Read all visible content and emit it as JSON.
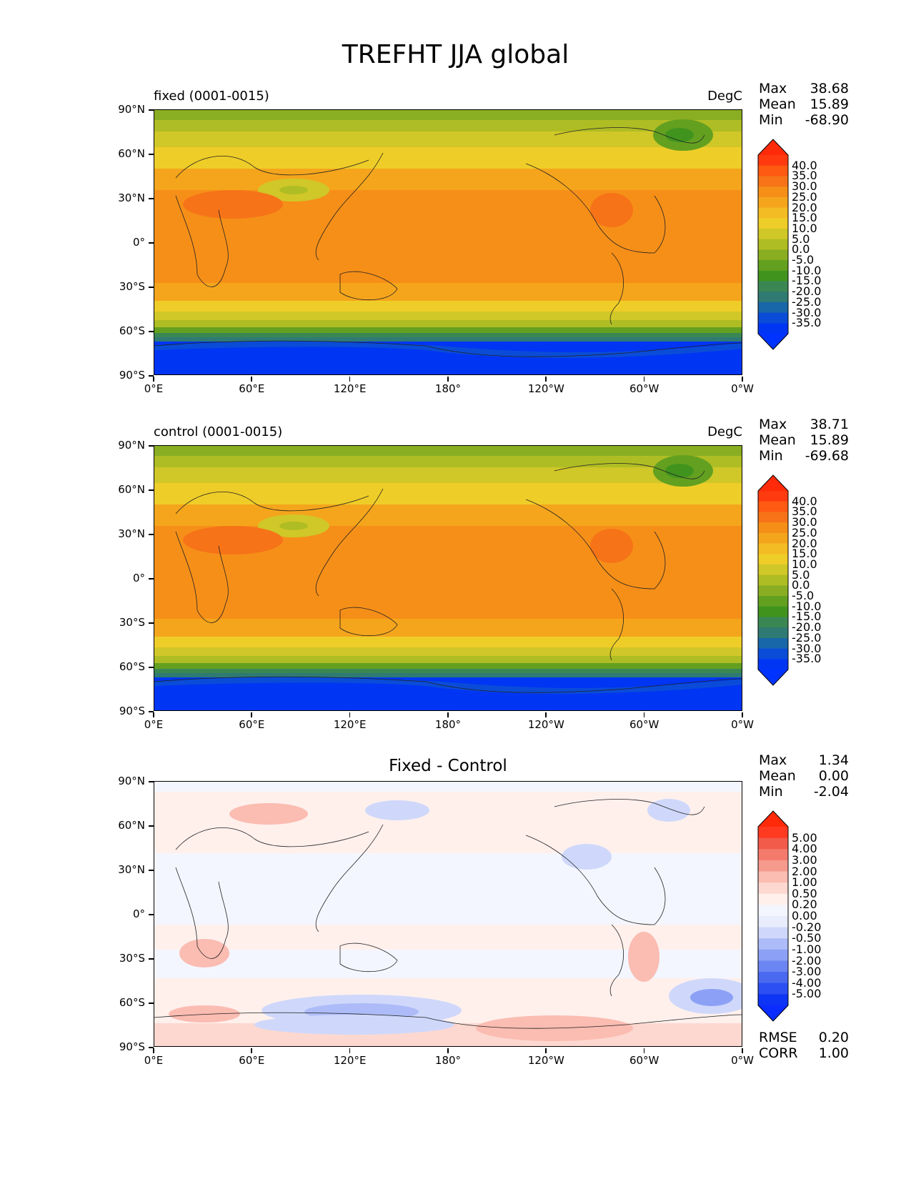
{
  "title": "TREFHT JJA global",
  "x_ticks": [
    "0°E",
    "60°E",
    "120°E",
    "180°",
    "120°W",
    "60°W",
    "0°W"
  ],
  "y_ticks": [
    "90°N",
    "60°N",
    "30°N",
    "0°",
    "30°S",
    "60°S",
    "90°S"
  ],
  "panels": [
    {
      "left_label": "fixed (0001-0015)",
      "center_title": "",
      "units": "DegC",
      "stats": [
        {
          "label": "Max",
          "value": "38.68"
        },
        {
          "label": "Mean",
          "value": "15.89"
        },
        {
          "label": "Min",
          "value": "-68.90"
        }
      ],
      "colorbar_labels": [
        "40.0",
        "35.0",
        "30.0",
        "25.0",
        "20.0",
        "15.0",
        "10.0",
        "5.0",
        "0.0",
        "-5.0",
        "-10.0",
        "-15.0",
        "-20.0",
        "-25.0",
        "-30.0",
        "-35.0"
      ],
      "colorbar_colors": [
        "#ff3a0f",
        "#ff5a12",
        "#f67318",
        "#f68f18",
        "#f5a51c",
        "#f3bb24",
        "#efcd28",
        "#d0c728",
        "#afbd24",
        "#8aae22",
        "#63a020",
        "#40941e",
        "#3b8754",
        "#2f7a73",
        "#1867a8",
        "#0a4cd8",
        "#0035f4"
      ],
      "end_colors": {
        "top": "#ff2a0a",
        "bottom": "#0033ff"
      },
      "footer": []
    },
    {
      "left_label": "control (0001-0015)",
      "center_title": "",
      "units": "DegC",
      "stats": [
        {
          "label": "Max",
          "value": "38.71"
        },
        {
          "label": "Mean",
          "value": "15.89"
        },
        {
          "label": "Min",
          "value": "-69.68"
        }
      ],
      "colorbar_labels": [
        "40.0",
        "35.0",
        "30.0",
        "25.0",
        "20.0",
        "15.0",
        "10.0",
        "5.0",
        "0.0",
        "-5.0",
        "-10.0",
        "-15.0",
        "-20.0",
        "-25.0",
        "-30.0",
        "-35.0"
      ],
      "colorbar_colors": [
        "#ff3a0f",
        "#ff5a12",
        "#f67318",
        "#f68f18",
        "#f5a51c",
        "#f3bb24",
        "#efcd28",
        "#d0c728",
        "#afbd24",
        "#8aae22",
        "#63a020",
        "#40941e",
        "#3b8754",
        "#2f7a73",
        "#1867a8",
        "#0a4cd8",
        "#0035f4"
      ],
      "end_colors": {
        "top": "#ff2a0a",
        "bottom": "#0033ff"
      },
      "footer": []
    },
    {
      "left_label": "",
      "center_title": "Fixed - Control",
      "units": "",
      "stats": [
        {
          "label": "Max",
          "value": "1.34"
        },
        {
          "label": "Mean",
          "value": "0.00"
        },
        {
          "label": "Min",
          "value": "-2.04"
        }
      ],
      "colorbar_labels": [
        "5.00",
        "4.00",
        "3.00",
        "2.00",
        "1.00",
        "0.50",
        "0.20",
        "0.00",
        "-0.20",
        "-0.50",
        "-1.00",
        "-2.00",
        "-3.00",
        "-4.00",
        "-5.00"
      ],
      "colorbar_colors": [
        "#ff3a20",
        "#f25a4a",
        "#f47a6c",
        "#f79a8e",
        "#fbbcb2",
        "#fdd8d0",
        "#fff0ec",
        "#f4f6ff",
        "#e8ecfd",
        "#cfd8fb",
        "#adbcf8",
        "#8ca1f5",
        "#6b85f2",
        "#4a69f0",
        "#2b4ff2",
        "#0f35f4"
      ],
      "end_colors": {
        "top": "#ff2a0a",
        "bottom": "#0a2cff"
      },
      "footer": [
        {
          "label": "RMSE",
          "value": "0.20"
        },
        {
          "label": "CORR",
          "value": "1.00"
        }
      ]
    }
  ]
}
